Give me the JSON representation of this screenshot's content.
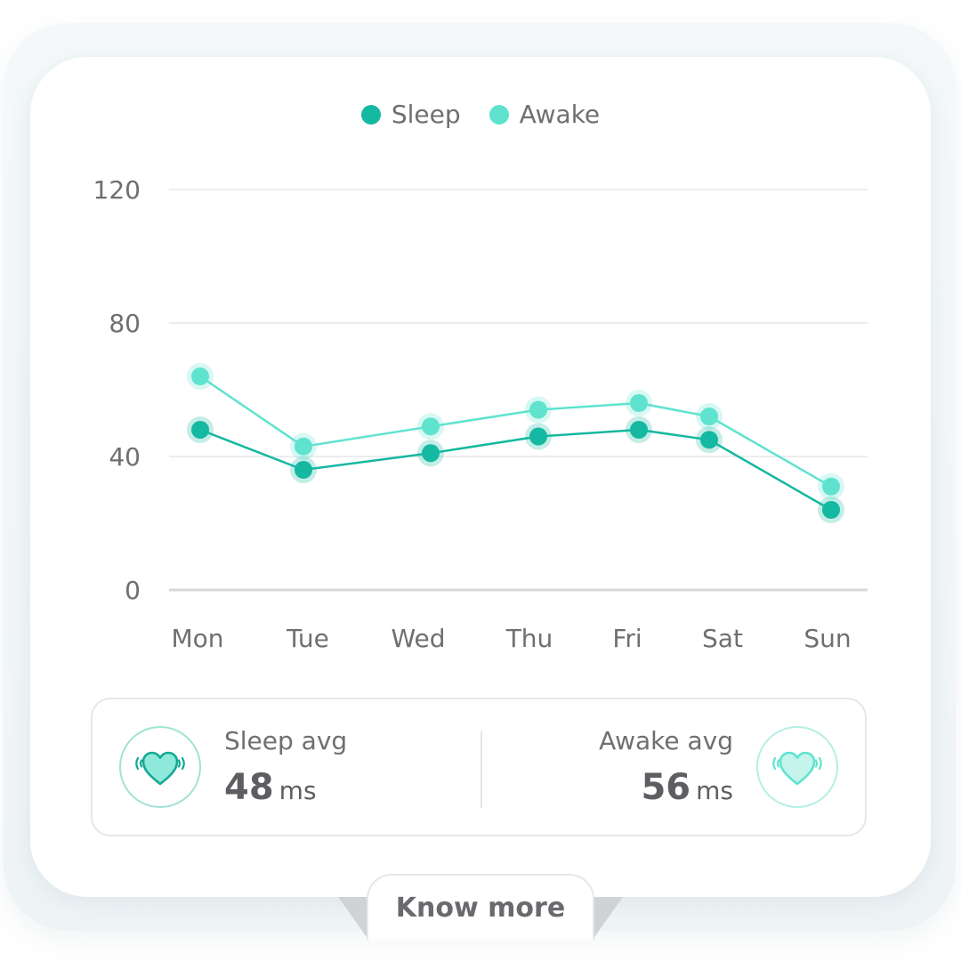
{
  "colors": {
    "sleep": "#15b8a0",
    "awake": "#5fe3cf",
    "grid": "#ececee",
    "axis": "#d6d8db",
    "text": "#6f6f73"
  },
  "legend": {
    "sleep_label": "Sleep",
    "awake_label": "Awake"
  },
  "chart_data": {
    "type": "line",
    "categories": [
      "Mon",
      "Tue",
      "Wed",
      "Thu",
      "Fri",
      "Sat",
      "Sun"
    ],
    "series": [
      {
        "name": "Sleep",
        "values": [
          48,
          36,
          41,
          46,
          48,
          45,
          24
        ]
      },
      {
        "name": "Awake",
        "values": [
          64,
          43,
          49,
          54,
          56,
          52,
          31
        ]
      }
    ],
    "yticks": [
      0,
      40,
      80,
      120
    ],
    "ylim": [
      0,
      120
    ],
    "grid": true,
    "legend_position": "top-center",
    "xlabel": "",
    "ylabel": ""
  },
  "summary": {
    "sleep_avg": {
      "label": "Sleep avg",
      "value": "48",
      "unit": "ms",
      "icon": "heart-icon"
    },
    "awake_avg": {
      "label": "Awake avg",
      "value": "56",
      "unit": "ms",
      "icon": "heart-icon"
    }
  },
  "know_more_label": "Know more"
}
